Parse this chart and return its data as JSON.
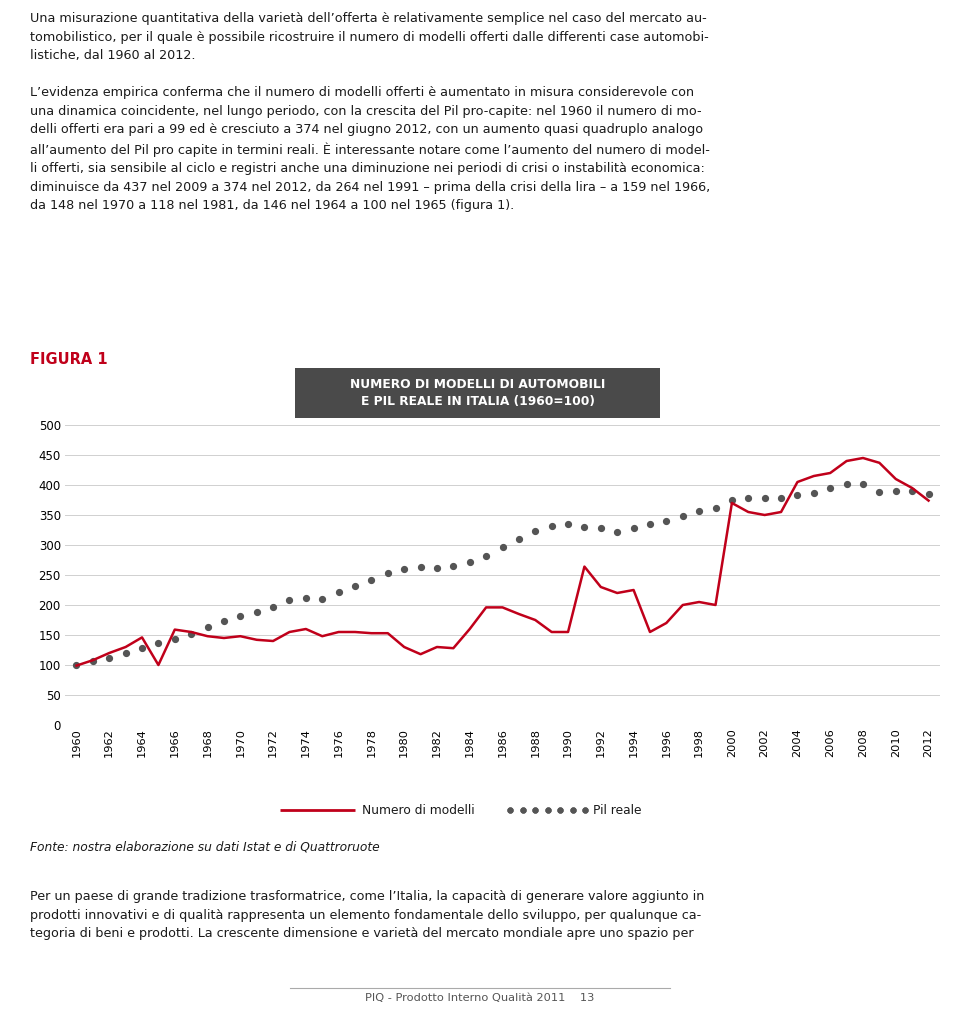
{
  "years": [
    1960,
    1961,
    1962,
    1963,
    1964,
    1965,
    1966,
    1967,
    1968,
    1969,
    1970,
    1971,
    1972,
    1973,
    1974,
    1975,
    1976,
    1977,
    1978,
    1979,
    1980,
    1981,
    1982,
    1983,
    1984,
    1985,
    1986,
    1987,
    1988,
    1989,
    1990,
    1991,
    1992,
    1993,
    1994,
    1995,
    1996,
    1997,
    1998,
    1999,
    2000,
    2001,
    2002,
    2003,
    2004,
    2005,
    2006,
    2007,
    2008,
    2009,
    2010,
    2011,
    2012
  ],
  "modelli": [
    99,
    108,
    120,
    130,
    146,
    100,
    159,
    155,
    148,
    145,
    148,
    142,
    140,
    155,
    160,
    148,
    155,
    155,
    153,
    153,
    130,
    118,
    130,
    128,
    160,
    196,
    196,
    185,
    175,
    155,
    155,
    264,
    230,
    220,
    225,
    155,
    170,
    200,
    205,
    200,
    370,
    355,
    350,
    355,
    405,
    415,
    420,
    440,
    445,
    437,
    410,
    395,
    374
  ],
  "pil": [
    100,
    106,
    112,
    120,
    128,
    136,
    144,
    152,
    163,
    174,
    182,
    188,
    196,
    208,
    212,
    210,
    222,
    232,
    242,
    254,
    260,
    263,
    262,
    265,
    272,
    282,
    296,
    310,
    323,
    332,
    335,
    330,
    328,
    322,
    328,
    335,
    340,
    348,
    356,
    362,
    375,
    378,
    378,
    378,
    384,
    386,
    395,
    402,
    402,
    388,
    390,
    390,
    385
  ],
  "title_line1": "NUMERO DI MODELLI DI AUTOMOBILI",
  "title_line2": "E PIL REALE IN ITALIA (1960=100)",
  "title_bg_color": "#4a4a4a",
  "title_text_color": "#ffffff",
  "modelli_color": "#c0001a",
  "pil_color": "#555555",
  "legend_modelli": "Numero di modelli",
  "legend_pil": "Pil reale",
  "fonte": "Fonte: nostra elaborazione su dati Istat e di Quattroruote",
  "ylim": [
    0,
    500
  ],
  "yticks": [
    0,
    50,
    100,
    150,
    200,
    250,
    300,
    350,
    400,
    450,
    500
  ],
  "grid_color": "#d0d0d0",
  "background_color": "#ffffff",
  "figura_label": "FIGURA 1",
  "figura_color": "#c0001a",
  "top_text_line1": "Una misurazione quantitativa della varietà dell’offerta è relativamente semplice nel caso del mercato au-",
  "top_text_line2": "tomobilistico, per il quale è possibile ricostruire il numero di modelli offerti dalle differenti case automobi-",
  "top_text_line3": "listiche, dal 1960 al 2012.",
  "top_text_line4": "L’evidenza empirica conferma che il numero di modelli offerti è aumentato in misura considerevole con",
  "top_text_line5": "una dinamica coincidente, nel lungo periodo, con la crescita del Pil pro-capite: nel 1960 il numero di mo-",
  "top_text_line6": "delli offerti era pari a 99 ed è cresciuto a 374 nel giugno 2012, con un aumento quasi quadruplo analogo",
  "top_text_line7": "all’aumento del Pil pro capite in termini reali. È interessante notare come l’aumento del numero di model-",
  "top_text_line8": "li offerti, sia sensibile al ciclo e registri anche una diminuzione nei periodi di crisi o instabilità economica:",
  "top_text_line9": "diminuisce da 437 nel 2009 a 374 nel 2012, da 264 nel 1991 – prima della crisi della lira – a 159 nel 1966,",
  "top_text_line10": "da 148 nel 1970 a 118 nel 1981, da 146 nel 1964 a 100 nel 1965 (figura 1).",
  "bottom_text_line1": "Per un paese di grande tradizione trasformatrice, come l’Italia, la capacità di generare valore aggiunto in",
  "bottom_text_line2": "prodotti innovativi e di qualità rappresenta un elemento fondamentale dello sviluppo, per qualunque ca-",
  "bottom_text_line3": "tegoria di beni e prodotti. La crescente dimensione e varietà del mercato mondiale apre uno spazio per",
  "footer_text": "PIQ - Prodotto Interno Qualità 2011    13"
}
